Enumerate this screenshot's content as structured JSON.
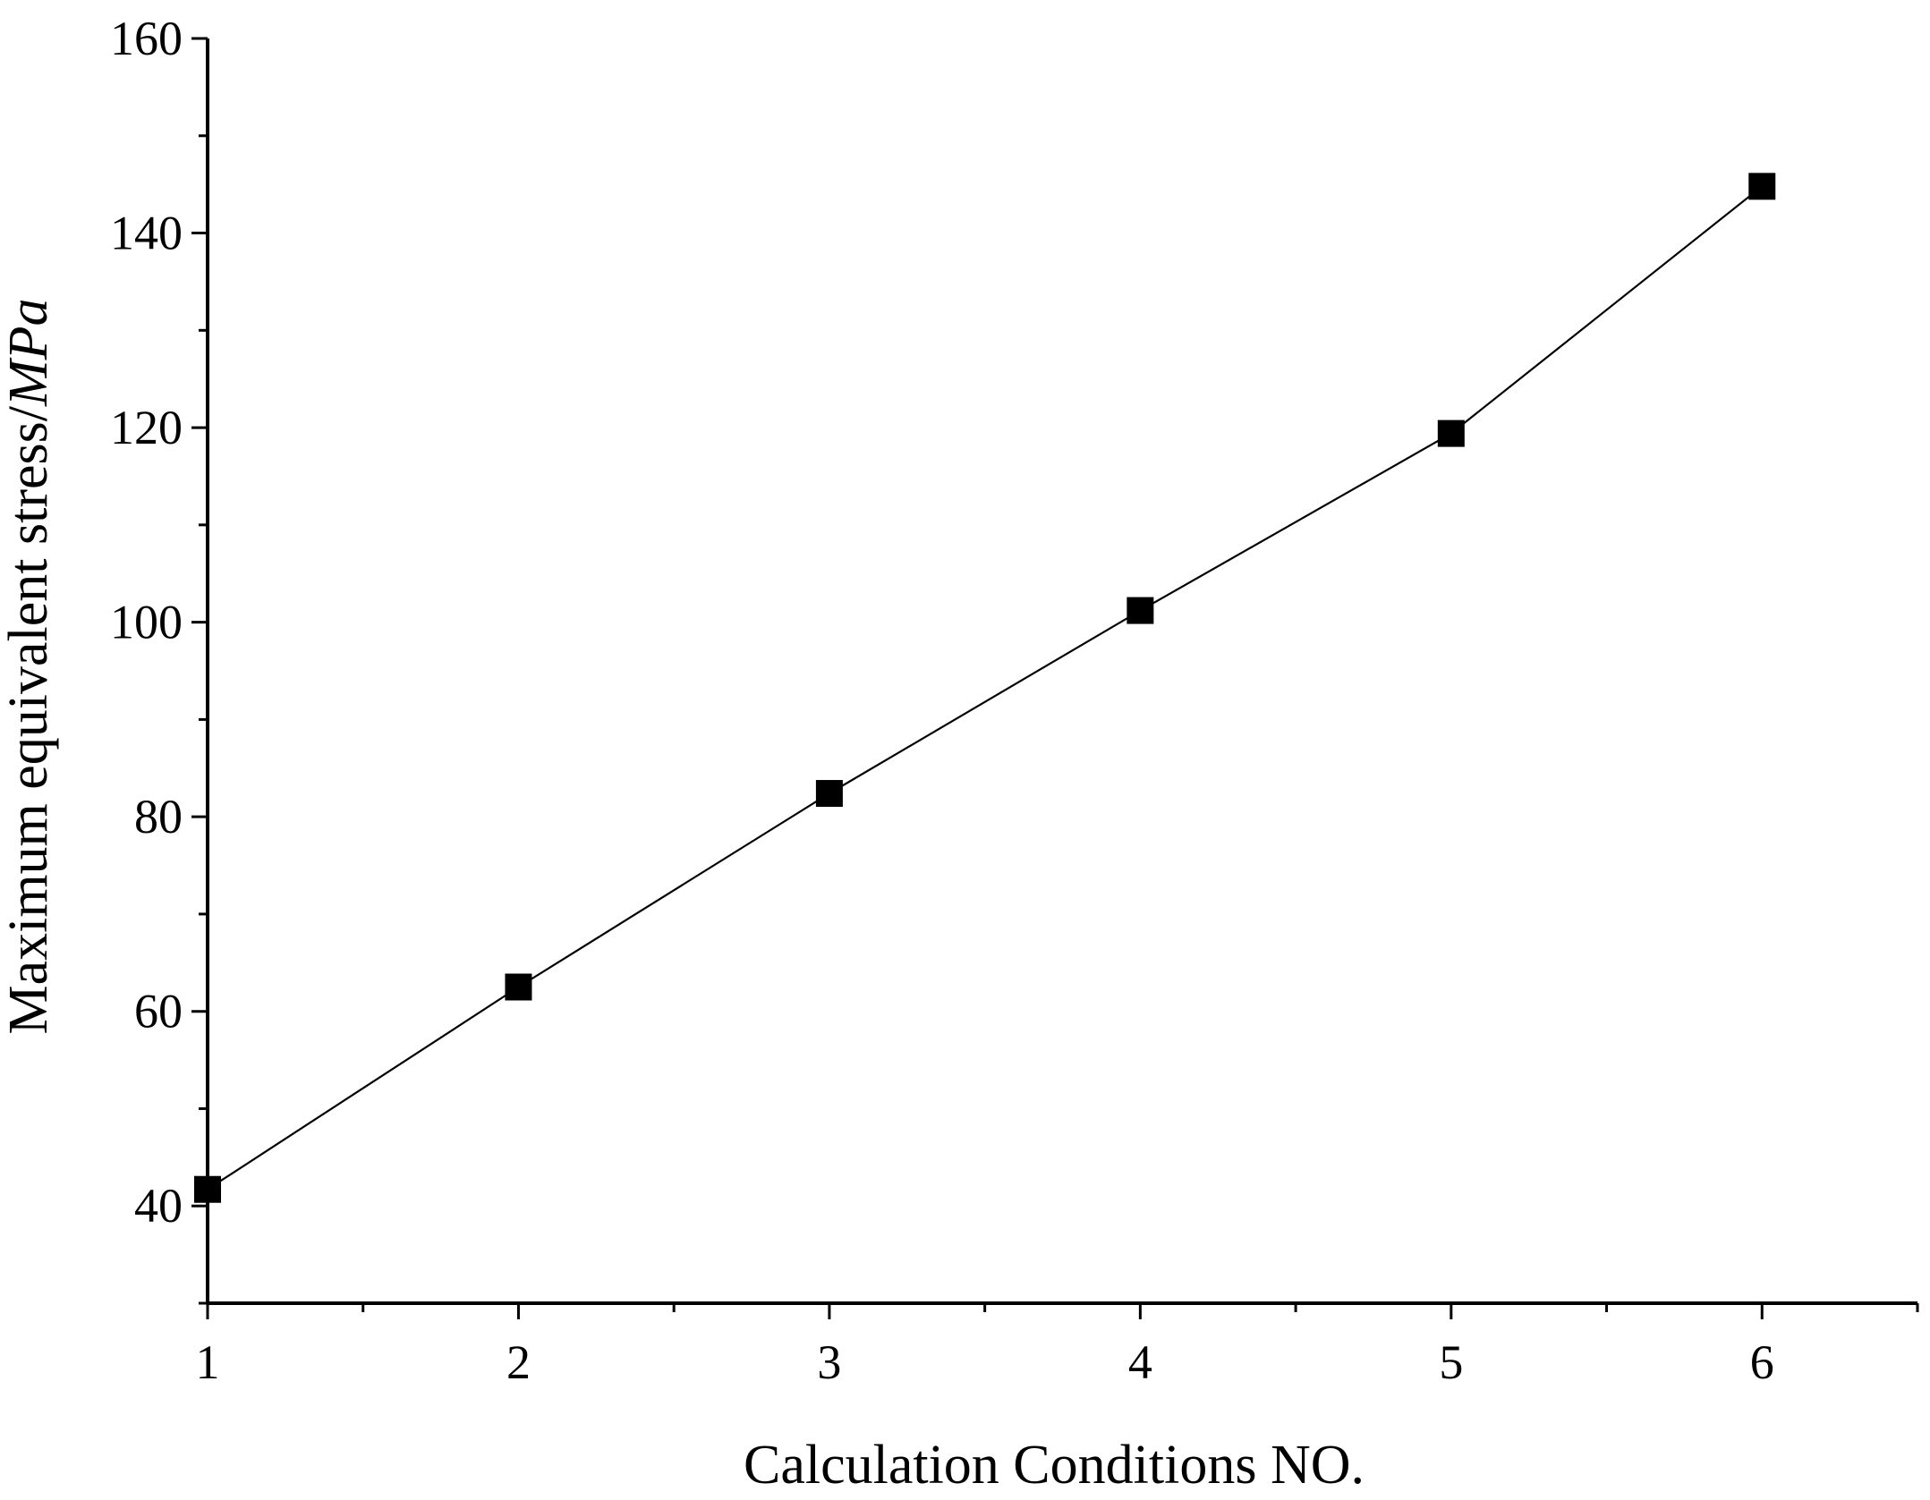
{
  "chart_data": {
    "type": "line",
    "xlabel": "Calculation Conditions NO.",
    "ylabel_prefix": "Maximum equivalent stress/",
    "ylabel_unit": "MPa",
    "xlim": [
      1,
      6.5
    ],
    "ylim": [
      30,
      160
    ],
    "x_major_ticks": [
      1,
      2,
      3,
      4,
      5,
      6
    ],
    "x_minor_ticks": [
      1.5,
      2.5,
      3.5,
      4.5,
      5.5,
      6.5
    ],
    "y_major_ticks": [
      40,
      60,
      80,
      100,
      120,
      140,
      160
    ],
    "y_minor_ticks": [
      30,
      50,
      70,
      90,
      110,
      130,
      150
    ],
    "x_tick_labels": [
      "1",
      "2",
      "3",
      "4",
      "5",
      "6"
    ],
    "y_tick_labels": [
      "40",
      "60",
      "80",
      "100",
      "120",
      "140",
      "160"
    ],
    "series": [
      {
        "x": [
          1,
          2,
          3,
          4,
          5,
          6
        ],
        "y": [
          41.7,
          62.5,
          82.4,
          101.2,
          119.4,
          144.8
        ],
        "marker": "square",
        "color": "#000000"
      }
    ],
    "grid": false,
    "legend": false
  }
}
